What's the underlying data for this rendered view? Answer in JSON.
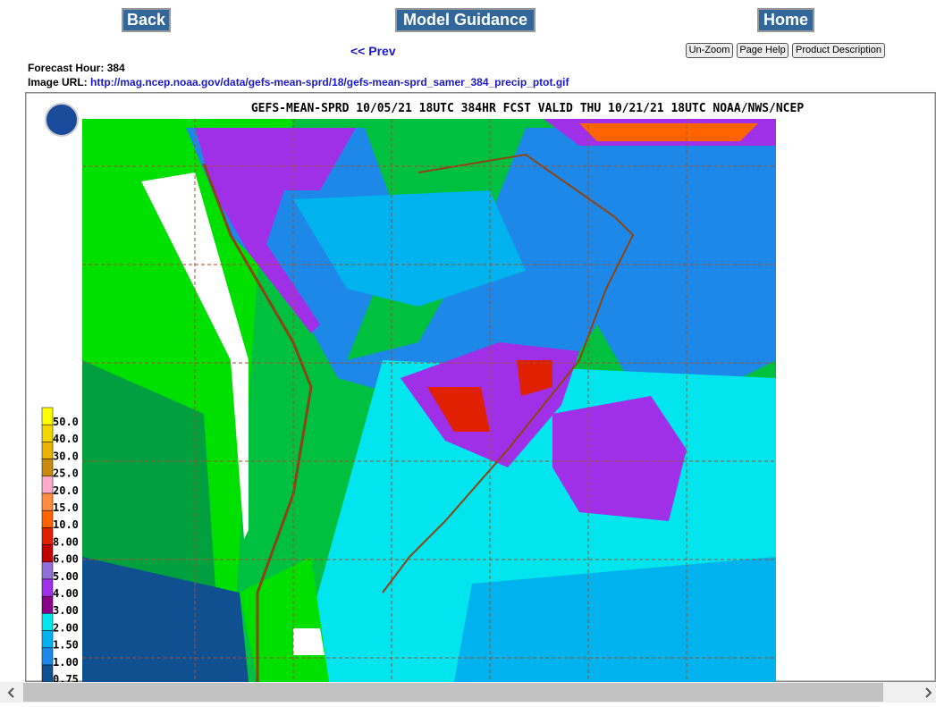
{
  "nav": {
    "back": "Back",
    "model_guidance": "Model Guidance",
    "home": "Home",
    "prev": "<< Prev"
  },
  "tools": [
    "Un-Zoom",
    "Page Help",
    "Product Description"
  ],
  "info": {
    "forecast_hour_label": "Forecast Hour:",
    "forecast_hour": "384",
    "image_url_label": "Image URL:",
    "image_url": "http://mag.ncep.noaa.gov/data/gefs-mean-sprd/18/gefs-mean-sprd_samer_384_precip_ptot.gif"
  },
  "map": {
    "title": "GEFS-MEAN-SPRD 10/05/21 18UTC 384HR FCST VALID THU 10/21/21 18UTC NOAA/NWS/NCEP",
    "legend": [
      {
        "label": "50.0",
        "color": "#ffff00"
      },
      {
        "label": "40.0",
        "color": "#f2d600"
      },
      {
        "label": "30.0",
        "color": "#e8b400"
      },
      {
        "label": "25.0",
        "color": "#c88a10"
      },
      {
        "label": "20.0",
        "color": "#ffaac8"
      },
      {
        "label": "15.0",
        "color": "#ff8c40"
      },
      {
        "label": "10.0",
        "color": "#ff6400"
      },
      {
        "label": "8.00",
        "color": "#e02000"
      },
      {
        "label": "6.00",
        "color": "#c00000"
      },
      {
        "label": "5.00",
        "color": "#9070d8"
      },
      {
        "label": "4.00",
        "color": "#a030e8"
      },
      {
        "label": "3.00",
        "color": "#880088"
      },
      {
        "label": "2.00",
        "color": "#00e5ee"
      },
      {
        "label": "1.50",
        "color": "#00b2ee"
      },
      {
        "label": "1.00",
        "color": "#1e88e8"
      },
      {
        "label": "0.75",
        "color": "#105090"
      }
    ]
  }
}
